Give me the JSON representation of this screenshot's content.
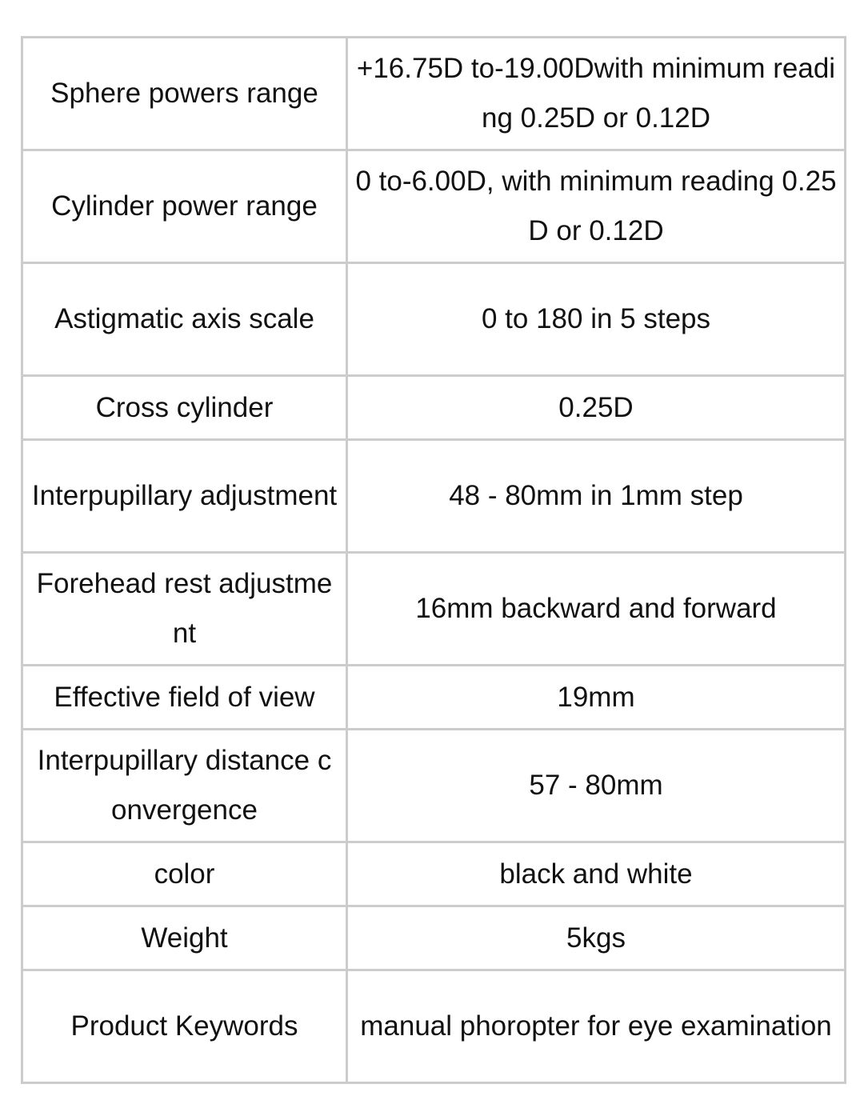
{
  "spec_table": {
    "border_color": "#cccccc",
    "rows": [
      {
        "label": "Sphere powers range",
        "value": "+16.75D to-19.00Dwith minimum reading 0.25D or 0.12D"
      },
      {
        "label": "Cylinder power range",
        "value": "0 to-6.00D, with minimum reading 0.25D or 0.12D"
      },
      {
        "label": "Astigmatic axis scale",
        "value": "0 to 180 in 5 steps"
      },
      {
        "label": "Cross cylinder",
        "value": "0.25D"
      },
      {
        "label": "Interpupillary adjustment",
        "value": "48 - 80mm in 1mm step"
      },
      {
        "label": "Forehead rest adjustment",
        "value": "16mm backward and forward"
      },
      {
        "label": "Effective field of view",
        "value": "19mm"
      },
      {
        "label": "Interpupillary distance convergence",
        "value": "57 - 80mm"
      },
      {
        "label": "color",
        "value": "black and white"
      },
      {
        "label": "Weight",
        "value": "5kgs"
      },
      {
        "label": "Product Keywords",
        "value": "manual phoropter for eye examination"
      }
    ]
  }
}
